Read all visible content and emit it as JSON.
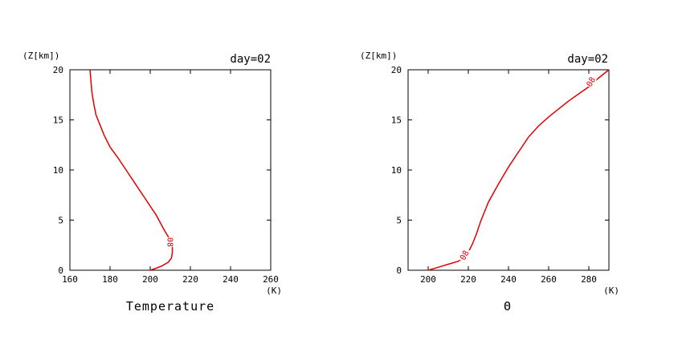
{
  "chart_data": [
    {
      "type": "line",
      "title": "Temperature",
      "day_label": "day=02",
      "ylabel": "(Z[km])",
      "xunit": "(K)",
      "xlim": [
        160,
        260
      ],
      "ylim": [
        0,
        20
      ],
      "xticks": [
        160,
        180,
        200,
        220,
        240,
        260
      ],
      "yticks": [
        0,
        5,
        10,
        15,
        20
      ],
      "contour_label": "08",
      "contour_label_at": [
        210,
        2.8
      ],
      "color": "#e00000",
      "x": [
        200,
        203,
        206,
        209,
        210.5,
        211,
        211,
        210,
        207,
        203,
        198,
        193,
        188,
        184,
        180,
        177,
        175,
        173,
        172,
        171,
        170.5,
        170
      ],
      "y": [
        0,
        0.2,
        0.45,
        0.8,
        1.2,
        1.7,
        2.3,
        3.0,
        4.0,
        5.5,
        7.0,
        8.5,
        10.0,
        11.2,
        12.3,
        13.5,
        14.5,
        15.5,
        16.5,
        17.7,
        18.8,
        20
      ]
    },
    {
      "type": "line",
      "title": "Θ",
      "day_label": "day=02",
      "ylabel": "(Z[km])",
      "xunit": "(K)",
      "xlim": [
        190,
        290
      ],
      "ylim": [
        0,
        20
      ],
      "xticks": [
        200,
        220,
        240,
        260,
        280
      ],
      "yticks": [
        0,
        5,
        10,
        15,
        20
      ],
      "contour_label": "08",
      "contour_label_at": [
        [
          218,
          1.5
        ],
        [
          281,
          18.8
        ]
      ],
      "color": "#e00000",
      "x": [
        200,
        205,
        210,
        215,
        218,
        220,
        222,
        224,
        226,
        230,
        235,
        240,
        245,
        250,
        255,
        260,
        265,
        270,
        275,
        280,
        285,
        290
      ],
      "y": [
        0,
        0.3,
        0.6,
        0.9,
        1.3,
        1.8,
        2.6,
        3.6,
        4.8,
        6.8,
        8.6,
        10.3,
        11.8,
        13.3,
        14.4,
        15.3,
        16.1,
        16.9,
        17.6,
        18.3,
        19.2,
        20
      ]
    }
  ]
}
